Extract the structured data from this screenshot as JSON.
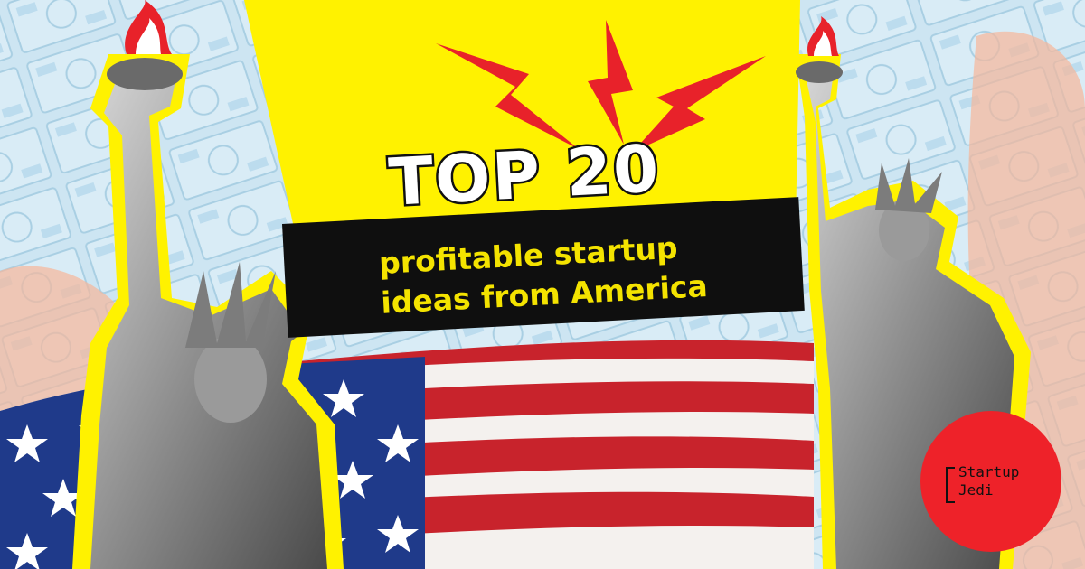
{
  "headline": "TOP 20",
  "subtitle": {
    "line1": "profitable startup",
    "line2": "ideas from America"
  },
  "logo": {
    "line1": "Startup",
    "line2": "Jedi"
  },
  "colors": {
    "spotlight": "#fff200",
    "banner": "#0f0f0f",
    "subtitle_text": "#f4e300",
    "logo_circle": "#ee2229",
    "flag_red": "#c8232c",
    "flag_blue": "#1f3a8a",
    "lightning": "#e8222a"
  }
}
